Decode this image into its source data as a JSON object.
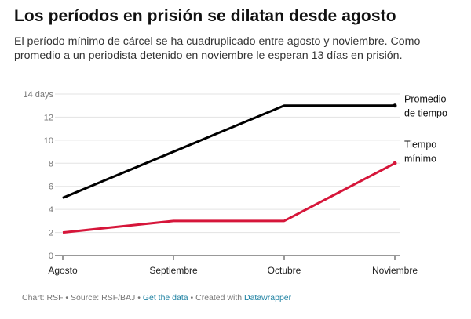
{
  "title": "Los períodos en prisión se dilatan desde agosto",
  "subtitle": "El período mínimo de cárcel se ha cuadruplicado entre agosto y noviembre. Como promedio a un periodista detenido en noviembre le esperan 13 días en prisión.",
  "footer": {
    "chart": "Chart: RSF",
    "sep1": " • ",
    "source": "Source: RSF/BAJ",
    "sep2": " • ",
    "get_data": "Get the data",
    "sep3": " • Created with ",
    "created_with": "Datawrapper"
  },
  "chart_data": {
    "type": "line",
    "categories": [
      "Agosto",
      "Septiembre",
      "Octubre",
      "Noviembre"
    ],
    "ylim": [
      0,
      14
    ],
    "yticks": [
      0,
      2,
      4,
      6,
      8,
      10,
      12,
      14
    ],
    "ytick_labels": [
      "0",
      "2",
      "4",
      "6",
      "8",
      "10",
      "12",
      "14 days"
    ],
    "grid": true,
    "series": [
      {
        "name_lines": [
          "Promedio",
          "de tiempo"
        ],
        "values": [
          5,
          9,
          13,
          13
        ],
        "color": "#000000"
      },
      {
        "name_lines": [
          "Tiempo",
          "mínimo"
        ],
        "values": [
          2,
          3,
          3,
          8
        ],
        "color": "#d6163a"
      }
    ]
  }
}
